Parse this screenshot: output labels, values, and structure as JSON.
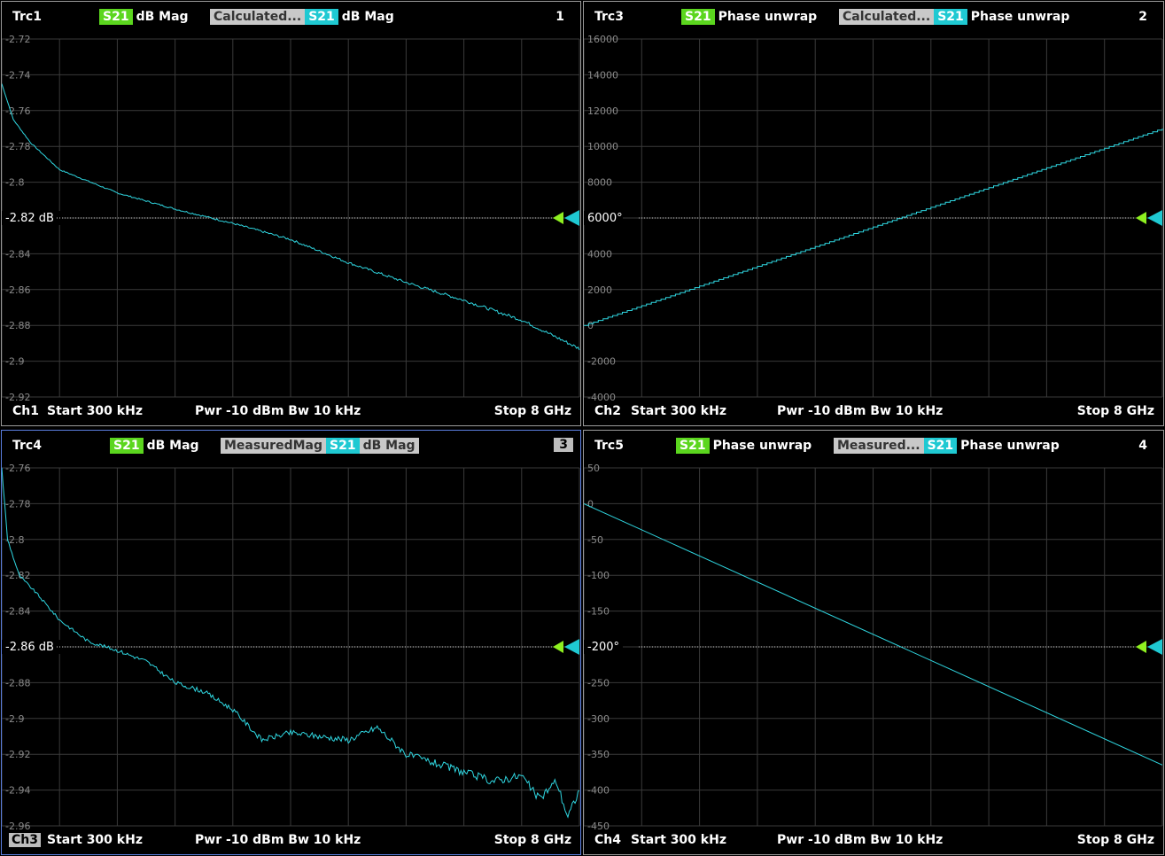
{
  "panels": [
    {
      "trace": "Trc1",
      "meas": "dB Mag",
      "param": "S21",
      "calc_label": "Calculated...",
      "calc_meas": "dB Mag",
      "number": "1",
      "footer": {
        "channel": "Ch1",
        "start": "Start  300 kHz",
        "power": "Pwr  -10 dBm  Bw  10 kHz",
        "stop": "Stop  8 GHz"
      },
      "ref_label": "-2.82 dB"
    },
    {
      "trace": "Trc3",
      "meas": "Phase unwrap",
      "param": "S21",
      "calc_label": "Calculated...",
      "calc_meas": "Phase unwrap",
      "number": "2",
      "footer": {
        "channel": "Ch2",
        "start": "Start  300 kHz",
        "power": "Pwr  -10 dBm  Bw  10 kHz",
        "stop": "Stop  8 GHz"
      },
      "ref_label": "6000°"
    },
    {
      "trace": "Trc4",
      "meas": "dB Mag",
      "param": "S21",
      "calc_label": "MeasuredMag",
      "calc_meas": "dB Mag",
      "number": "3",
      "footer": {
        "channel": "Ch3",
        "start": "Start  300 kHz",
        "power": "Pwr  -10 dBm  Bw  10 kHz",
        "stop": "Stop  8 GHz"
      },
      "ref_label": "-2.86 dB"
    },
    {
      "trace": "Trc5",
      "meas": "Phase unwrap",
      "param": "S21",
      "calc_label": "Measured...",
      "calc_meas": "Phase unwrap",
      "number": "4",
      "footer": {
        "channel": "Ch4",
        "start": "Start  300 kHz",
        "power": "Pwr  -10 dBm  Bw  10 kHz",
        "stop": "Stop  8 GHz"
      },
      "ref_label": "-200°"
    }
  ],
  "colors": {
    "trace": "#2fd6e0",
    "grid": "#3a3a3a",
    "param_green": "#5bd61e",
    "param_cyan": "#1fc9d2",
    "marker_green": "#8ef020"
  },
  "chart_data": [
    {
      "type": "line",
      "x_range": [
        "300 kHz",
        "8 GHz"
      ],
      "ylim": [
        -2.92,
        -2.72
      ],
      "yticks": [
        "-2.72",
        "-2.74",
        "-2.76",
        "-2.78",
        "-2.8",
        "-2.82 dB",
        "-2.84",
        "-2.86",
        "-2.88",
        "-2.9",
        "-2.92"
      ],
      "x": [
        0,
        0.02,
        0.05,
        0.1,
        0.2,
        0.3,
        0.4,
        0.5,
        0.6,
        0.7,
        0.8,
        0.9,
        0.95,
        1.0
      ],
      "values": [
        -2.745,
        -2.765,
        -2.778,
        -2.793,
        -2.806,
        -2.815,
        -2.823,
        -2.832,
        -2.845,
        -2.856,
        -2.866,
        -2.877,
        -2.885,
        -2.893
      ]
    },
    {
      "type": "line",
      "x_range": [
        "300 kHz",
        "8 GHz"
      ],
      "ylim": [
        -4000,
        16000
      ],
      "yticks": [
        "16000",
        "14000",
        "12000",
        "10000",
        "8000",
        "6000°",
        "4000",
        "2000",
        "0",
        "-2000",
        "-4000"
      ],
      "x": [
        0,
        1
      ],
      "values": [
        0,
        11000
      ]
    },
    {
      "type": "line",
      "x_range": [
        "300 kHz",
        "8 GHz"
      ],
      "ylim": [
        -2.96,
        -2.76
      ],
      "yticks": [
        "-2.76",
        "-2.78",
        "-2.8",
        "-2.82",
        "-2.84",
        "-2.86 dB",
        "-2.88",
        "-2.9",
        "-2.92",
        "-2.94",
        "-2.96"
      ],
      "x": [
        0,
        0.01,
        0.03,
        0.06,
        0.1,
        0.15,
        0.2,
        0.25,
        0.3,
        0.35,
        0.4,
        0.45,
        0.5,
        0.55,
        0.6,
        0.65,
        0.7,
        0.75,
        0.8,
        0.85,
        0.9,
        0.93,
        0.96,
        0.98,
        1.0
      ],
      "values": [
        -2.76,
        -2.8,
        -2.82,
        -2.83,
        -2.845,
        -2.857,
        -2.862,
        -2.868,
        -2.88,
        -2.885,
        -2.895,
        -2.912,
        -2.908,
        -2.91,
        -2.912,
        -2.905,
        -2.92,
        -2.925,
        -2.93,
        -2.935,
        -2.932,
        -2.945,
        -2.935,
        -2.955,
        -2.94
      ]
    },
    {
      "type": "line",
      "x_range": [
        "300 kHz",
        "8 GHz"
      ],
      "ylim": [
        -450,
        50
      ],
      "yticks": [
        "50",
        "0",
        "-50",
        "-100",
        "-150",
        "-200°",
        "-250",
        "-300",
        "-350",
        "-400",
        "-450"
      ],
      "x": [
        0,
        1
      ],
      "values": [
        0,
        -365
      ]
    }
  ]
}
